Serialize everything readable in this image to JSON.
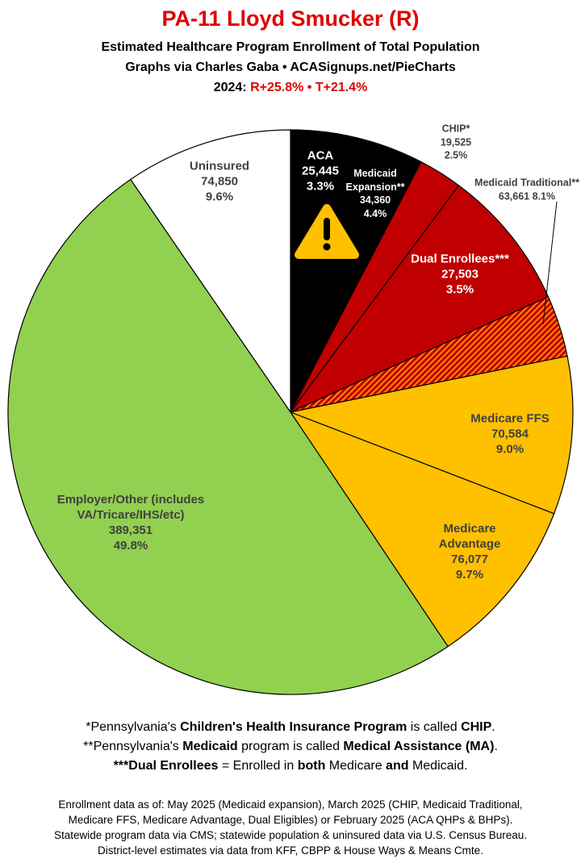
{
  "chart_data": {
    "type": "pie",
    "title": "PA-11 Lloyd Smucker (R)",
    "subtitle": [
      "Estimated Healthcare Program Enrollment of Total Population",
      "Graphs via Charles Gaba  •  ACASignups.net/PieCharts"
    ],
    "year_label": "2024:",
    "year_values": "R+25.8%  •  T+21.4%",
    "slices": [
      {
        "name": "ACA",
        "value": 25445,
        "value_label": "25,445",
        "percent": 3.3,
        "percent_label": "3.3%",
        "color": "#000000"
      },
      {
        "name": "Medicaid Expansion**",
        "value": 34360,
        "value_label": "34,360",
        "percent": 4.4,
        "percent_label": "4.4%",
        "color": "#000000"
      },
      {
        "name": "CHIP*",
        "value": 19525,
        "value_label": "19,525",
        "percent": 2.5,
        "percent_label": "2.5%",
        "color": "#c00000"
      },
      {
        "name": "Medicaid Traditional**",
        "value": 63661,
        "value_label": "63,661",
        "percent": 8.1,
        "percent_label": "8.1%",
        "color": "#c00000"
      },
      {
        "name": "Dual Enrollees***",
        "value": 27503,
        "value_label": "27,503",
        "percent": 3.5,
        "percent_label": "3.5%",
        "color": "#c00000",
        "hatch_color": "#ff8a00"
      },
      {
        "name": "Medicare FFS",
        "value": 70584,
        "value_label": "70,584",
        "percent": 9.0,
        "percent_label": "9.0%",
        "color": "#ffc000"
      },
      {
        "name": "Medicare Advantage",
        "value": 76077,
        "value_label": "76,077",
        "percent": 9.7,
        "percent_label": "9.7%",
        "color": "#ffc000"
      },
      {
        "name": "Employer/Other (includes VA/Tricare/IHS/etc)",
        "value": 389351,
        "value_label": "389,351",
        "percent": 49.8,
        "percent_label": "49.8%",
        "color": "#92d050"
      },
      {
        "name": "Uninsured",
        "value": 74850,
        "value_label": "74,850",
        "percent": 9.6,
        "percent_label": "9.6%",
        "color": "#ffffff"
      }
    ]
  },
  "footnotes": [
    [
      "*Pennsylvania's ",
      "Children's Health Insurance Program",
      " is called ",
      "CHIP",
      "."
    ],
    [
      "**Pennsylvania's ",
      "Medicaid",
      " program is called ",
      "Medical Assistance (MA)",
      "."
    ],
    [
      "***Dual Enrollees",
      " = Enrolled in ",
      "both",
      " Medicare ",
      "and",
      " Medicaid."
    ]
  ],
  "sources": [
    "Enrollment data as of: May 2025 (Medicaid expansion), March 2025 (CHIP, Medicaid Traditional,",
    "Medicare FFS, Medicare Advantage, Dual Eligibles) or February 2025 (ACA QHPs & BHPs).",
    "Statewide program data via CMS; statewide population & uninsured data via U.S. Census Bureau.",
    "District-level estimates via data from KFF, CBPP & House Ways & Means Cmte."
  ]
}
